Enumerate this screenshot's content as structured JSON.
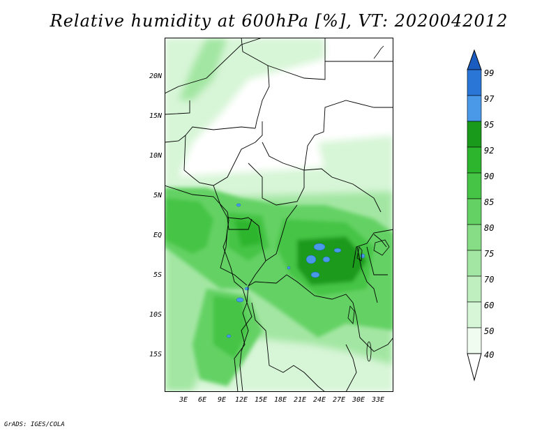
{
  "title": "Relative humidity at 600hPa [%], VT: 2020042012",
  "footer": "GrADS: IGES/COLA",
  "map": {
    "y_ticks": [
      "20N",
      "15N",
      "10N",
      "5N",
      "EQ",
      "5S",
      "10S",
      "15S"
    ],
    "x_ticks": [
      "3E",
      "6E",
      "9E",
      "12E",
      "15E",
      "18E",
      "21E",
      "24E",
      "27E",
      "30E",
      "33E"
    ]
  },
  "colorbar": {
    "levels": [
      "99",
      "97",
      "95",
      "92",
      "90",
      "85",
      "80",
      "75",
      "70",
      "60",
      "50",
      "40"
    ],
    "colors": {
      "lt40": "#ffffff",
      "40_50": "#f0fcf0",
      "50_60": "#d7f5d7",
      "60_70": "#bfeebf",
      "70_75": "#a3e6a3",
      "75_80": "#86dd86",
      "80_85": "#63d163",
      "85_90": "#45c445",
      "90_92": "#2eb52e",
      "92_95": "#1a9a1a",
      "95_97": "#4a98e8",
      "97_99": "#2a76d6",
      "gt99": "#1a5cbf"
    }
  }
}
